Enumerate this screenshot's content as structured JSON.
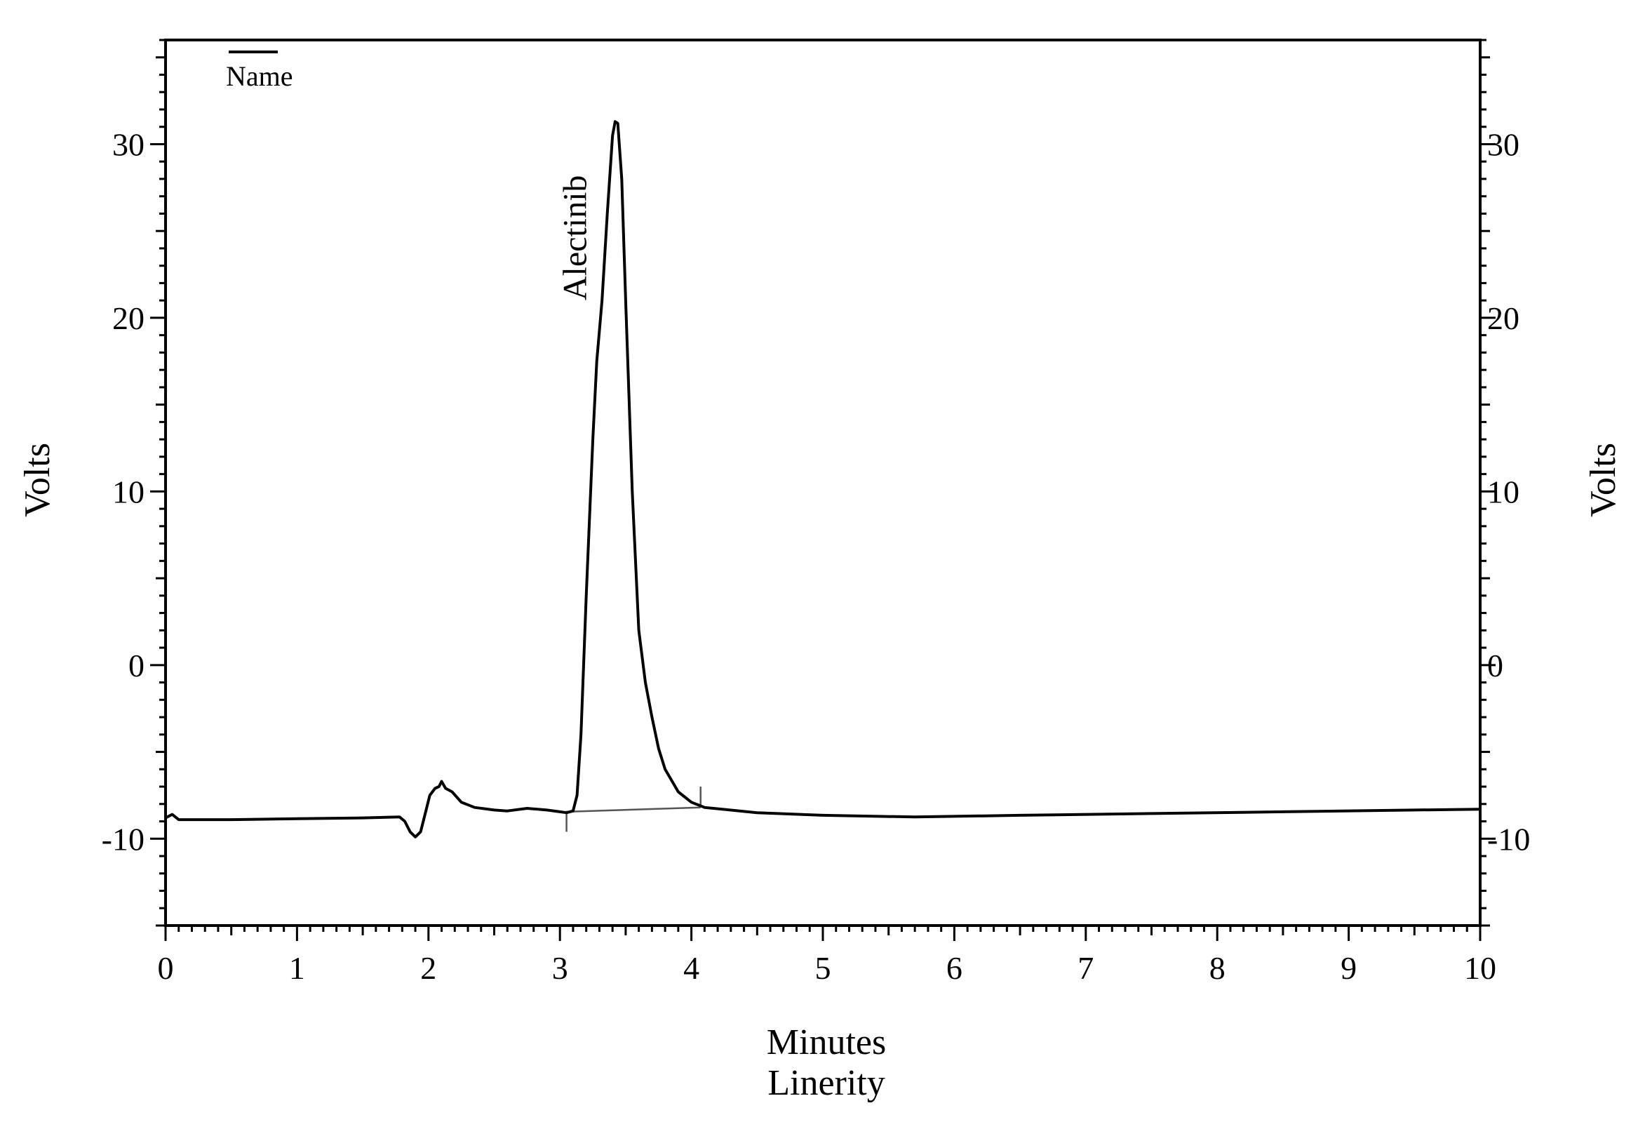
{
  "chart_data": {
    "type": "line",
    "title": "",
    "xlabel": "Minutes",
    "subtitle_below_x": "Linerity",
    "ylabel_left": "Volts",
    "ylabel_right": "Volts",
    "xlim": [
      0,
      10
    ],
    "ylim": [
      -15,
      36
    ],
    "x_ticks": [
      "0",
      "1",
      "2",
      "3",
      "4",
      "5",
      "6",
      "7",
      "8",
      "9",
      "10"
    ],
    "y_ticks": [
      "-10",
      "0",
      "10",
      "20",
      "30"
    ],
    "grid": false,
    "legend": {
      "placement": "top-left",
      "entries": [
        "Name"
      ]
    },
    "series": [
      {
        "color": "#000000",
        "points": [
          [
            0.0,
            -8.8
          ],
          [
            0.05,
            -8.6
          ],
          [
            0.1,
            -8.9
          ],
          [
            0.5,
            -8.9
          ],
          [
            1.0,
            -8.85
          ],
          [
            1.5,
            -8.8
          ],
          [
            1.78,
            -8.75
          ],
          [
            1.82,
            -9.0
          ],
          [
            1.86,
            -9.6
          ],
          [
            1.9,
            -9.9
          ],
          [
            1.94,
            -9.6
          ],
          [
            1.98,
            -8.4
          ],
          [
            2.01,
            -7.5
          ],
          [
            2.05,
            -7.1
          ],
          [
            2.08,
            -7.0
          ],
          [
            2.1,
            -6.7
          ],
          [
            2.13,
            -7.1
          ],
          [
            2.18,
            -7.3
          ],
          [
            2.25,
            -7.9
          ],
          [
            2.35,
            -8.2
          ],
          [
            2.5,
            -8.35
          ],
          [
            2.6,
            -8.4
          ],
          [
            2.75,
            -8.25
          ],
          [
            2.9,
            -8.35
          ],
          [
            3.0,
            -8.45
          ],
          [
            3.05,
            -8.5
          ],
          [
            3.1,
            -8.4
          ],
          [
            3.13,
            -7.5
          ],
          [
            3.16,
            -4.0
          ],
          [
            3.2,
            4.0
          ],
          [
            3.25,
            13.0
          ],
          [
            3.28,
            17.5
          ],
          [
            3.32,
            21.0
          ],
          [
            3.36,
            26.0
          ],
          [
            3.4,
            30.5
          ],
          [
            3.42,
            31.3
          ],
          [
            3.44,
            31.2
          ],
          [
            3.47,
            28.0
          ],
          [
            3.5,
            21.0
          ],
          [
            3.55,
            10.0
          ],
          [
            3.6,
            2.0
          ],
          [
            3.65,
            -1.0
          ],
          [
            3.7,
            -3.0
          ],
          [
            3.75,
            -4.8
          ],
          [
            3.8,
            -6.0
          ],
          [
            3.9,
            -7.3
          ],
          [
            4.0,
            -7.9
          ],
          [
            4.1,
            -8.2
          ],
          [
            4.5,
            -8.5
          ],
          [
            5.0,
            -8.65
          ],
          [
            5.7,
            -8.75
          ],
          [
            6.5,
            -8.65
          ],
          [
            7.5,
            -8.55
          ],
          [
            8.5,
            -8.45
          ],
          [
            9.5,
            -8.35
          ],
          [
            10.0,
            -8.3
          ]
        ]
      }
    ],
    "baseline_segment": [
      [
        3.05,
        -8.45
      ],
      [
        4.07,
        -8.2
      ]
    ],
    "baseline_markers": [
      {
        "x": 3.05,
        "y_top": -8.4,
        "y_bottom": -9.6
      },
      {
        "x": 4.07,
        "y_top": -7.0,
        "y_bottom": -8.2
      }
    ],
    "annotations": [
      {
        "text": "Alectinib",
        "x": 3.2,
        "y": 21,
        "rotation": -90
      }
    ]
  }
}
